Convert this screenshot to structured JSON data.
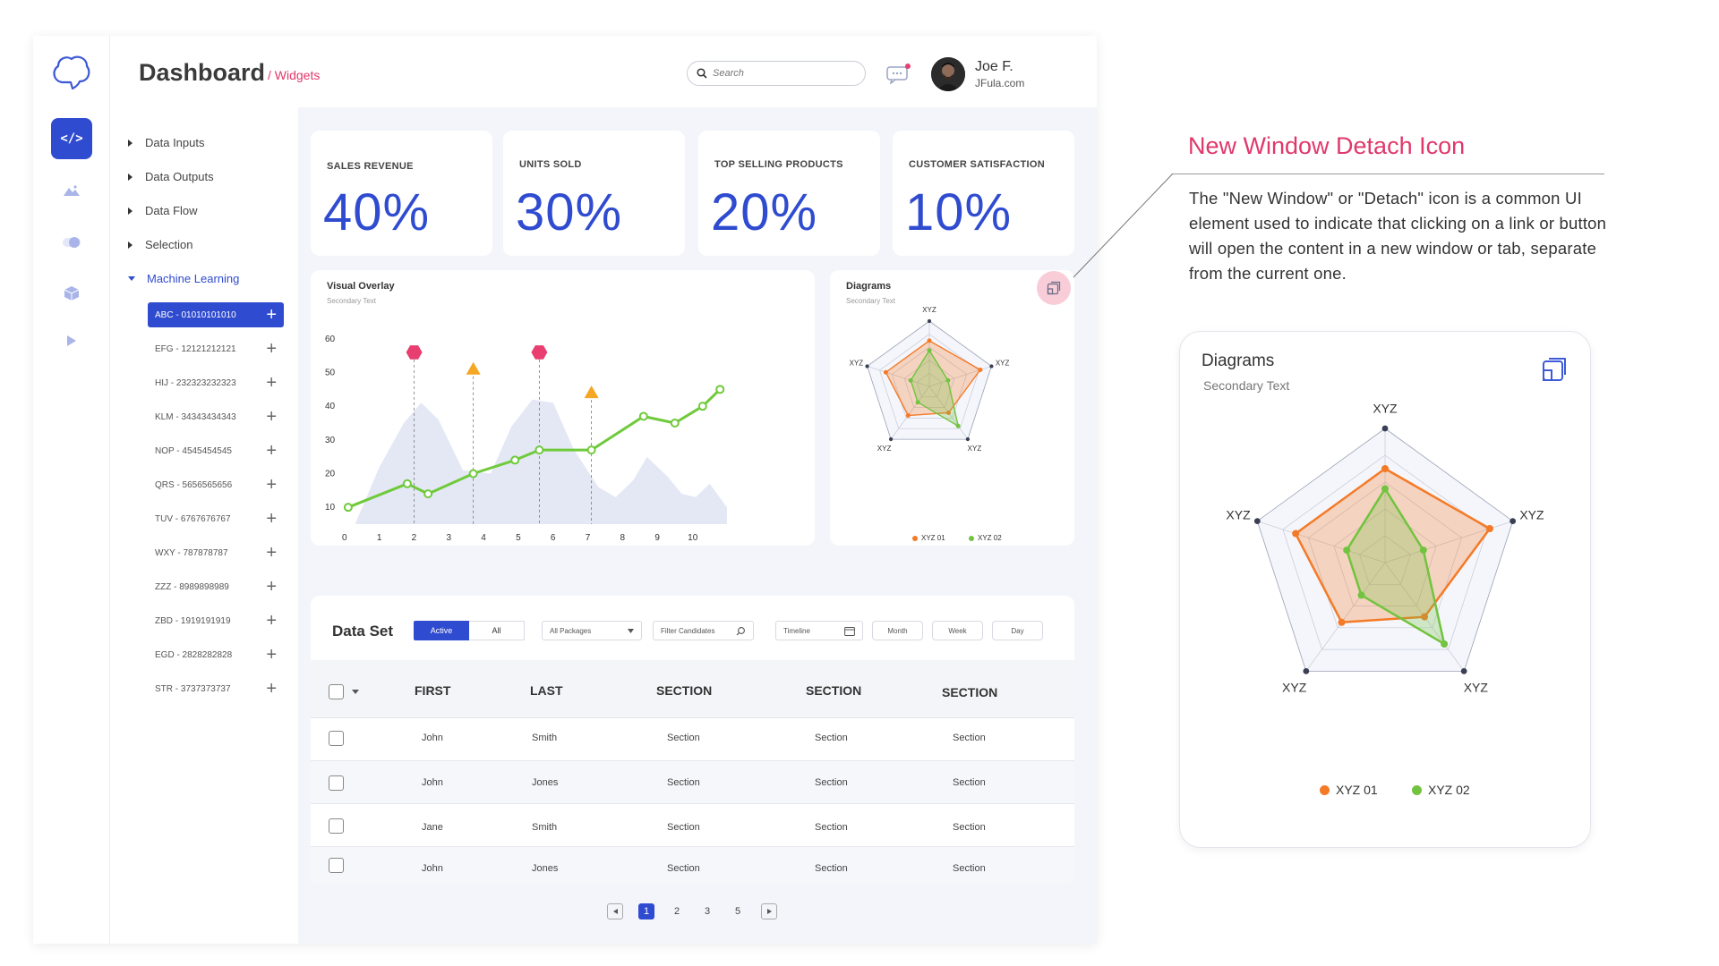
{
  "header": {
    "title": "Dashboard",
    "breadcrumb": "/ Widgets",
    "search_placeholder": "Search",
    "user_name": "Joe F.",
    "user_site": "JFula.com"
  },
  "rail": {
    "icons": [
      "brain-logo-icon",
      "code-icon",
      "mountain-icon",
      "toggle-icon",
      "cube-icon",
      "play-icon"
    ]
  },
  "sidebar": {
    "items": [
      {
        "label": "Data Inputs"
      },
      {
        "label": "Data Outputs"
      },
      {
        "label": "Data Flow"
      },
      {
        "label": "Selection"
      },
      {
        "label": "Machine Learning"
      }
    ],
    "sub_items": [
      {
        "label": "ABC - 01010101010"
      },
      {
        "label": "EFG - 12121212121"
      },
      {
        "label": "HIJ - 232323232323"
      },
      {
        "label": "KLM - 34343434343"
      },
      {
        "label": "NOP - 4545454545"
      },
      {
        "label": "QRS - 5656565656"
      },
      {
        "label": "TUV - 6767676767"
      },
      {
        "label": "WXY - 787878787"
      },
      {
        "label": "ZZZ - 8989898989"
      },
      {
        "label": "ZBD - 1919191919"
      },
      {
        "label": "EGD - 2828282828"
      },
      {
        "label": "STR - 3737373737"
      }
    ]
  },
  "kpis": [
    {
      "label": "SALES REVENUE",
      "value": "40%"
    },
    {
      "label": "UNITS SOLD",
      "value": "30%"
    },
    {
      "label": "TOP SELLING PRODUCTS",
      "value": "20%"
    },
    {
      "label": "CUSTOMER SATISFACTION",
      "value": "10%"
    }
  ],
  "visual_overlay": {
    "title": "Visual Overlay",
    "subtitle": "Secondary Text"
  },
  "diagrams": {
    "title": "Diagrams",
    "subtitle": "Secondary Text",
    "legend": [
      "XYZ 01",
      "XYZ 02"
    ]
  },
  "chart_data": [
    {
      "type": "line",
      "title": "Visual Overlay",
      "subtitle": "Secondary Text",
      "x_ticks": [
        "0",
        "1",
        "2",
        "3",
        "4",
        "5",
        "6",
        "7",
        "8",
        "9",
        "10"
      ],
      "y_ticks": [
        "10",
        "20",
        "30",
        "40",
        "50",
        "60"
      ],
      "ylim": [
        5,
        65
      ],
      "xlim": [
        0,
        11
      ],
      "grid": false,
      "series": [
        {
          "values": [
            [
              0.1,
              10
            ],
            [
              1.8,
              17
            ],
            [
              2.4,
              14
            ],
            [
              3.7,
              20
            ],
            [
              4.9,
              24
            ],
            [
              5.6,
              27
            ],
            [
              7.1,
              27
            ],
            [
              8.6,
              37
            ],
            [
              9.5,
              35
            ],
            [
              10.3,
              40
            ],
            [
              10.8,
              45
            ]
          ],
          "color": "#6fca3b"
        }
      ],
      "area_background": [
        [
          0.3,
          5
        ],
        [
          1,
          22
        ],
        [
          1.7,
          35
        ],
        [
          2.2,
          41
        ],
        [
          2.7,
          36
        ],
        [
          3.4,
          21
        ],
        [
          4.2,
          20
        ],
        [
          4.8,
          34
        ],
        [
          5.4,
          42
        ],
        [
          6,
          41
        ],
        [
          6.6,
          27
        ],
        [
          7.3,
          16
        ],
        [
          7.8,
          13
        ],
        [
          8.3,
          18
        ],
        [
          8.7,
          25
        ],
        [
          9.3,
          19
        ],
        [
          9.7,
          14
        ],
        [
          10.1,
          13
        ],
        [
          10.5,
          17
        ],
        [
          11,
          10
        ],
        [
          11,
          5
        ]
      ],
      "markers": [
        {
          "x": 2.0,
          "y": 56,
          "shape": "hexagon",
          "color": "#e83e70"
        },
        {
          "x": 3.7,
          "y": 51,
          "shape": "triangle",
          "color": "#f5a623"
        },
        {
          "x": 5.6,
          "y": 56,
          "shape": "hexagon",
          "color": "#e83e70"
        },
        {
          "x": 7.1,
          "y": 44,
          "shape": "triangle",
          "color": "#f5a623"
        }
      ]
    },
    {
      "type": "radar",
      "title": "Diagrams",
      "subtitle": "Secondary Text",
      "axes": [
        "XYZ",
        "XYZ",
        "XYZ",
        "XYZ",
        "XYZ"
      ],
      "max": 1,
      "series": [
        {
          "name": "XYZ 01",
          "values": [
            0.7,
            0.82,
            0.5,
            0.55,
            0.7
          ],
          "color": "#f57a27"
        },
        {
          "name": "XYZ 02",
          "values": [
            0.55,
            0.3,
            0.75,
            0.3,
            0.3
          ],
          "color": "#72c33f"
        }
      ]
    }
  ],
  "dataset": {
    "title": "Data Set",
    "seg_active": "Active",
    "seg_all": "All",
    "packages": "All Packages",
    "filter": "Filter Candidates",
    "timeline": "Timeline",
    "month": "Month",
    "week": "Week",
    "day": "Day",
    "columns": [
      "FIRST",
      "LAST",
      "SECTION",
      "SECTION",
      "SECTION"
    ],
    "rows": [
      [
        "John",
        "Smith",
        "Section",
        "Section",
        "Section"
      ],
      [
        "John",
        "Jones",
        "Section",
        "Section",
        "Section"
      ],
      [
        "Jane",
        "Smith",
        "Section",
        "Section",
        "Section"
      ],
      [
        "John",
        "Jones",
        "Section",
        "Section",
        "Section"
      ]
    ],
    "pages": [
      "1",
      "2",
      "3",
      "5"
    ]
  },
  "annotation": {
    "title": "New Window Detach Icon",
    "body": "The \"New Window\" or \"Detach\" icon is a common UI element used to indicate that clicking on a link or button will open the content in a new window or tab, separate from the current one."
  },
  "colors": {
    "accent": "#2f4bd0",
    "pink": "#e0386c",
    "orange": "#f57a27",
    "green": "#72c33f"
  }
}
